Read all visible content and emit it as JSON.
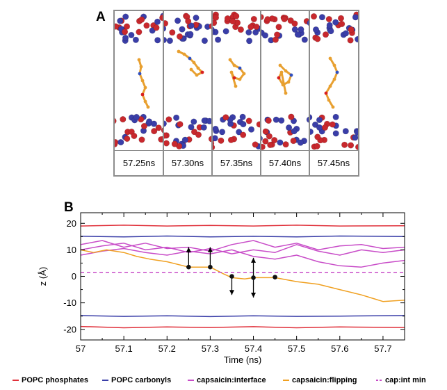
{
  "panel_a": {
    "letter": "A",
    "snapshots": [
      {
        "label": "57.25ns",
        "pose": "extended"
      },
      {
        "label": "57.30ns",
        "pose": "bent"
      },
      {
        "label": "57.35ns",
        "pose": "ring-flat"
      },
      {
        "label": "57.40ns",
        "pose": "ring-tilted"
      },
      {
        "label": "57.45ns",
        "pose": "extended-flipped"
      }
    ],
    "colors": {
      "phosphate": "#c8282d",
      "carbonyl": "#3a3ea8",
      "capsaicin": "#e8a030",
      "oxygen": "#d82020",
      "nitrogen": "#3050c0"
    }
  },
  "chart_data": {
    "type": "line",
    "panel_letter": "B",
    "xlabel": "Time (ns)",
    "ylabel": "z (Å)",
    "xlim": [
      57.0,
      57.75
    ],
    "ylim": [
      -24,
      24
    ],
    "xticks": [
      "57",
      "57.1",
      "57.2",
      "57.3",
      "57.4",
      "57.5",
      "57.6",
      "57.7"
    ],
    "yticks": [
      "20",
      "10",
      "0",
      "-10",
      "-20"
    ],
    "grid": false,
    "series": [
      {
        "name": "POPC phosphates",
        "color": "#e0303a",
        "style": "solid",
        "x": [
          57.0,
          57.1,
          57.2,
          57.3,
          57.4,
          57.5,
          57.6,
          57.75
        ],
        "y": [
          19.0,
          19.3,
          19.0,
          19.2,
          19.0,
          19.3,
          19.0,
          19.1
        ]
      },
      {
        "name": "POPC phosphates",
        "color": "#e0303a",
        "style": "solid",
        "x": [
          57.0,
          57.1,
          57.2,
          57.3,
          57.4,
          57.5,
          57.6,
          57.75
        ],
        "y": [
          -18.9,
          -19.4,
          -19.1,
          -19.3,
          -19.0,
          -19.4,
          -19.1,
          -19.3
        ]
      },
      {
        "name": "POPC carbonyls",
        "color": "#3a3ea8",
        "style": "solid",
        "x": [
          57.0,
          57.1,
          57.2,
          57.3,
          57.4,
          57.5,
          57.6,
          57.75
        ],
        "y": [
          15.1,
          14.9,
          15.2,
          14.9,
          15.1,
          14.9,
          15.2,
          15.0
        ]
      },
      {
        "name": "POPC carbonyls",
        "color": "#3a3ea8",
        "style": "solid",
        "x": [
          57.0,
          57.1,
          57.2,
          57.3,
          57.4,
          57.5,
          57.6,
          57.75
        ],
        "y": [
          -14.8,
          -15.1,
          -14.9,
          -15.2,
          -14.9,
          -15.1,
          -15.0,
          -14.8
        ]
      },
      {
        "name": "capsaicin:interface",
        "color": "#c84cc8",
        "style": "solid",
        "x": [
          57.0,
          57.05,
          57.1,
          57.15,
          57.2,
          57.25,
          57.3,
          57.35,
          57.4,
          57.45,
          57.5,
          57.55,
          57.6,
          57.65,
          57.7,
          57.75
        ],
        "y": [
          12.0,
          13.5,
          11.0,
          12.5,
          10.5,
          11.0,
          9.5,
          12.0,
          13.5,
          11.0,
          12.5,
          10.0,
          11.5,
          12.0,
          10.5,
          11.0
        ]
      },
      {
        "name": "capsaicin:interface",
        "color": "#c84cc8",
        "style": "solid",
        "x": [
          57.0,
          57.05,
          57.1,
          57.15,
          57.2,
          57.25,
          57.3,
          57.35,
          57.4,
          57.45,
          57.5,
          57.55,
          57.6,
          57.65,
          57.7,
          57.75
        ],
        "y": [
          10.0,
          11.5,
          12.5,
          10.0,
          11.0,
          9.0,
          10.5,
          8.5,
          10.0,
          9.0,
          12.0,
          9.5,
          8.0,
          10.0,
          9.0,
          10.0
        ]
      },
      {
        "name": "capsaicin:interface",
        "color": "#c84cc8",
        "style": "solid",
        "x": [
          57.0,
          57.05,
          57.1,
          57.15,
          57.2,
          57.25,
          57.3,
          57.35,
          57.4,
          57.45,
          57.5,
          57.55,
          57.6,
          57.65,
          57.7,
          57.75
        ],
        "y": [
          8.0,
          9.5,
          10.5,
          9.0,
          8.0,
          9.5,
          8.5,
          10.0,
          7.5,
          6.5,
          8.0,
          5.5,
          4.0,
          3.5,
          5.0,
          6.0
        ]
      },
      {
        "name": "capsaicin:flipping",
        "color": "#f0a020",
        "style": "solid",
        "x": [
          57.0,
          57.03,
          57.06,
          57.1,
          57.13,
          57.16,
          57.2,
          57.25,
          57.3,
          57.33,
          57.35,
          57.38,
          57.4,
          57.45,
          57.5,
          57.55,
          57.6,
          57.65,
          57.68,
          57.7,
          57.75
        ],
        "y": [
          10.0,
          9.0,
          10.0,
          9.0,
          7.5,
          6.5,
          5.5,
          3.5,
          3.5,
          1.0,
          -0.5,
          -1.0,
          -0.5,
          -0.5,
          -2.0,
          -3.0,
          -5.0,
          -7.0,
          -8.5,
          -9.5,
          -9.0
        ]
      },
      {
        "name": "cap:int min",
        "color": "#c84cc8",
        "style": "dashed",
        "x": [
          57.0,
          57.75
        ],
        "y": [
          1.5,
          1.5
        ]
      }
    ],
    "markers": [
      {
        "x": 57.25,
        "y": 3.5
      },
      {
        "x": 57.3,
        "y": 3.5
      },
      {
        "x": 57.35,
        "y": 0.0
      },
      {
        "x": 57.4,
        "y": -0.5
      },
      {
        "x": 57.45,
        "y": -0.3
      }
    ],
    "arrows": [
      {
        "x": 57.25,
        "from": 3.5,
        "to": 11.0
      },
      {
        "x": 57.3,
        "from": 3.5,
        "to": 11.0
      },
      {
        "x": 57.35,
        "from": 0.0,
        "to": -7.0
      },
      {
        "x": 57.4,
        "from": -0.5,
        "to": 7.0
      },
      {
        "x": 57.4,
        "from": -0.5,
        "to": -8.0
      }
    ]
  },
  "legend": [
    {
      "label": "POPC phosphates",
      "color": "#e0303a",
      "dashed": false
    },
    {
      "label": "POPC carbonyls",
      "color": "#3a3ea8",
      "dashed": false
    },
    {
      "label": "capsaicin:interface",
      "color": "#c84cc8",
      "dashed": false
    },
    {
      "label": "capsaicin:flipping",
      "color": "#f0a020",
      "dashed": false
    },
    {
      "label": "cap:int min",
      "color": "#c84cc8",
      "dashed": true
    }
  ]
}
